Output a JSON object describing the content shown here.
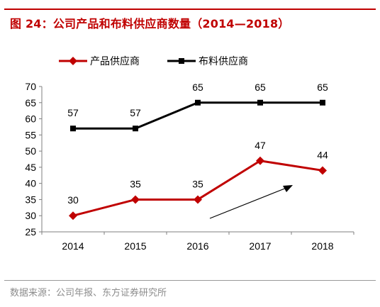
{
  "figure": {
    "title": "图 24：公司产品和布料供应商数量（2014—2018）",
    "source": "数据来源：公司年报、东方证券研究所"
  },
  "colors": {
    "accent": "#c00000",
    "series_red": "#c00000",
    "series_black": "#000000"
  },
  "chart_data": {
    "type": "line",
    "title": "",
    "xlabel": "",
    "ylabel": "",
    "categories": [
      "2014",
      "2015",
      "2016",
      "2017",
      "2018"
    ],
    "ylim": [
      25,
      70
    ],
    "yticks": [
      25,
      30,
      35,
      40,
      45,
      50,
      55,
      60,
      65,
      70
    ],
    "grid": false,
    "legend_position": "top",
    "series": [
      {
        "name": "产品供应商",
        "color": "#c00000",
        "marker": "diamond",
        "values": [
          30,
          35,
          35,
          47,
          44
        ]
      },
      {
        "name": "布料供应商",
        "color": "#000000",
        "marker": "square",
        "values": [
          57,
          57,
          65,
          65,
          65
        ]
      }
    ]
  }
}
